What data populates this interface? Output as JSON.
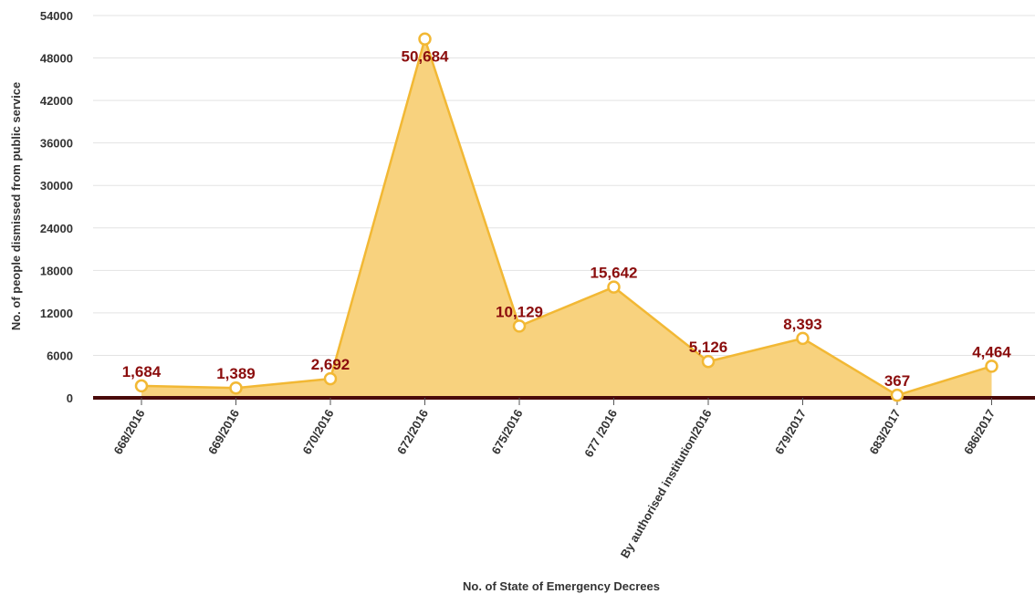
{
  "chart_data": {
    "type": "area",
    "title": "",
    "xlabel": "No. of State of Emergency Decrees",
    "ylabel": "No. of people dismissed from public service",
    "categories": [
      "668/2016",
      "669/2016",
      "670/2016",
      "672/2016",
      "675/2016",
      "677 /2016",
      "By authorised institution/2016",
      "679/2017",
      "683/2017",
      "686/2017"
    ],
    "values": [
      1684,
      1389,
      2692,
      50684,
      10129,
      15642,
      5126,
      8393,
      367,
      4464
    ],
    "data_labels": [
      "1,684",
      "1,389",
      "2,692",
      "50,684",
      "10,129",
      "15,642",
      "5,126",
      "8,393",
      "367",
      "4,464"
    ],
    "y_ticks": [
      "0",
      "6000",
      "12000",
      "18000",
      "24000",
      "30000",
      "36000",
      "42000",
      "48000",
      "54000"
    ],
    "ylim": [
      0,
      54000
    ],
    "grid": true,
    "legend": "none",
    "colors": {
      "fill": "#f8d27e",
      "line": "#f2b834",
      "marker_fill": "#ffffff",
      "data_label": "#8b0d0d",
      "baseline": "#4a0a0a",
      "grid": "#e3e3e3"
    }
  }
}
